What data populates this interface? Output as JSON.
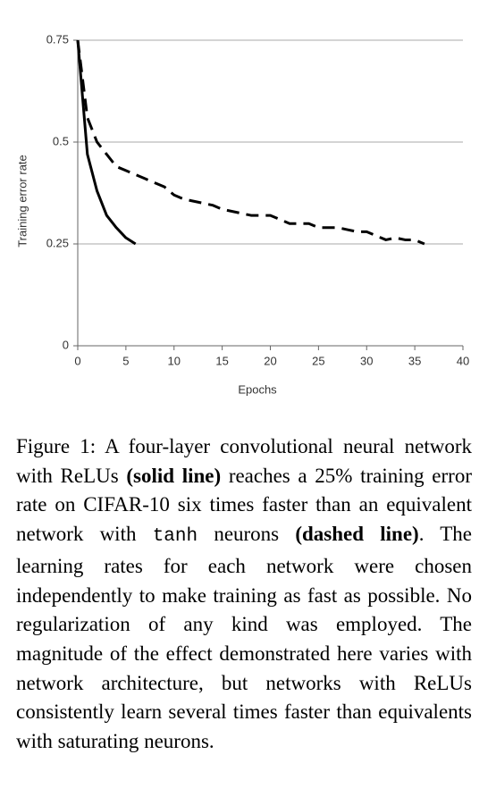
{
  "chart_data": {
    "type": "line",
    "ylabel": "Training error rate",
    "xlabel": "Epochs",
    "x": [
      0,
      1,
      2,
      3,
      4,
      5,
      6,
      7,
      8,
      9,
      10,
      11,
      12,
      13,
      14,
      15,
      16,
      17,
      18,
      19,
      20,
      21,
      22,
      23,
      24,
      25,
      26,
      27,
      28,
      29,
      30,
      31,
      32,
      33,
      34,
      35,
      36
    ],
    "series": [
      {
        "color": "#000000",
        "dashed": false,
        "values": [
          0.75,
          0.47,
          0.38,
          0.32,
          0.29,
          0.265,
          0.25,
          null,
          null,
          null,
          null,
          null,
          null,
          null,
          null,
          null,
          null,
          null,
          null,
          null,
          null,
          null,
          null,
          null,
          null,
          null,
          null,
          null,
          null,
          null,
          null,
          null,
          null,
          null,
          null,
          null,
          null
        ]
      },
      {
        "color": "#000000",
        "dashed": true,
        "values": [
          0.75,
          0.56,
          0.5,
          0.47,
          0.44,
          0.43,
          0.42,
          0.41,
          0.4,
          0.39,
          0.37,
          0.36,
          0.355,
          0.35,
          0.345,
          0.335,
          0.33,
          0.325,
          0.32,
          0.32,
          0.32,
          0.31,
          0.3,
          0.3,
          0.3,
          0.29,
          0.29,
          0.29,
          0.285,
          0.28,
          0.28,
          0.27,
          0.26,
          0.265,
          0.26,
          0.26,
          0.25
        ]
      }
    ],
    "xlim": [
      0,
      40
    ],
    "xticks": [
      0,
      5,
      10,
      15,
      20,
      25,
      30,
      35,
      40
    ],
    "ylim": [
      0,
      0.75
    ],
    "yticks": [
      0,
      0.25,
      0.5,
      0.75
    ],
    "grid": true
  },
  "caption": [
    "Figure 1:",
    " A four-layer convolutional neural network with ReLUs ",
    "(solid line)",
    " reaches a 25% training error rate on CIFAR-10 six times faster than an equivalent network with ",
    "tanh",
    " neurons ",
    "(dashed line)",
    ". The learning rates for each network were chosen independently to make training as fast as possible. No regularization of any kind was employed. The magnitude of the effect demonstrated here varies with network architecture, but networks with ReLUs consistently learn several times faster than equivalents with saturating neurons."
  ]
}
